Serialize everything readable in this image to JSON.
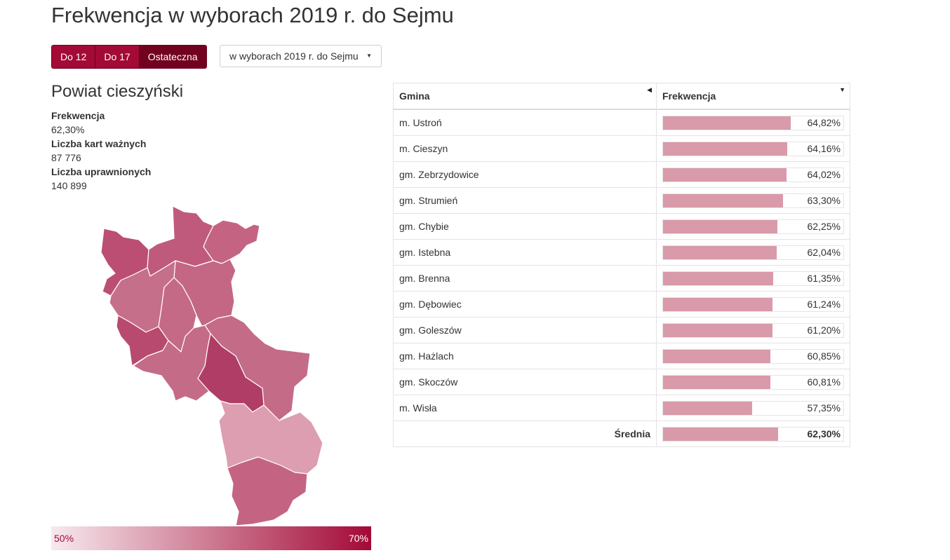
{
  "page": {
    "title": "Frekwencja w wyborach 2019 r. do Sejmu"
  },
  "tabs": [
    {
      "label": "Do 12",
      "active": false
    },
    {
      "label": "Do 17",
      "active": false
    },
    {
      "label": "Ostateczna",
      "active": true
    }
  ],
  "election_select": {
    "value": "w wyborach 2019 r. do Sejmu"
  },
  "region": {
    "title": "Powiat cieszyński",
    "turnout_label": "Frekwencja",
    "turnout_value": "62,30%",
    "valid_cards_label": "Liczba kart ważnych",
    "valid_cards_value": "87 776",
    "eligible_label": "Liczba uprawnionych",
    "eligible_value": "140 899"
  },
  "legend": {
    "min": "50%",
    "max": "70%",
    "color_low": "#f7e9ee",
    "color_high": "#a30a36"
  },
  "table": {
    "col_name": "Gmina",
    "col_turnout": "Frekwencja",
    "rows": [
      {
        "name": "m. Ustroń",
        "display": "64,82%",
        "value": 64.82
      },
      {
        "name": "m. Cieszyn",
        "display": "64,16%",
        "value": 64.16
      },
      {
        "name": "gm. Zebrzydowice",
        "display": "64,02%",
        "value": 64.02
      },
      {
        "name": "gm. Strumień",
        "display": "63,30%",
        "value": 63.3
      },
      {
        "name": "gm. Chybie",
        "display": "62,25%",
        "value": 62.25
      },
      {
        "name": "gm. Istebna",
        "display": "62,04%",
        "value": 62.04
      },
      {
        "name": "gm. Brenna",
        "display": "61,35%",
        "value": 61.35
      },
      {
        "name": "gm. Dębowiec",
        "display": "61,24%",
        "value": 61.24
      },
      {
        "name": "gm. Goleszów",
        "display": "61,20%",
        "value": 61.2
      },
      {
        "name": "gm. Hażlach",
        "display": "60,85%",
        "value": 60.85
      },
      {
        "name": "gm. Skoczów",
        "display": "60,81%",
        "value": 60.81
      },
      {
        "name": "m. Wisła",
        "display": "57,35%",
        "value": 57.35
      }
    ],
    "average": {
      "label": "Średnia",
      "display": "62,30%",
      "value": 62.3
    }
  },
  "colors": {
    "accent": "#a30a36",
    "accent_dark": "#72001f",
    "bar": "#d99aaa"
  }
}
